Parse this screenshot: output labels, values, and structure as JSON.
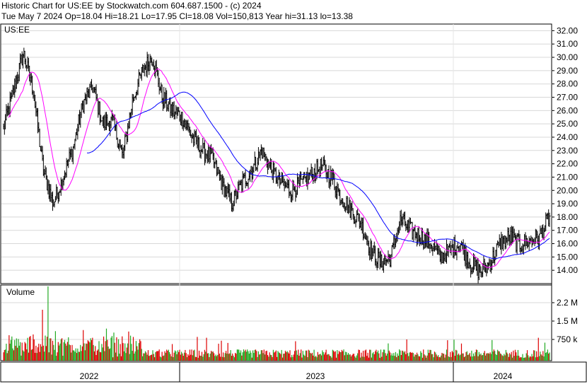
{
  "header": {
    "line1": "Historic Chart for US:EE by Stockwatch.com 604.687.1500 - (c) 2024",
    "line2": "Tue May  7 2024   Op=18.04   Hi=18.21   Lo=17.95   Cl=18.08   Vol=150,813   Year hi=31.13   lo=13.38"
  },
  "chart_data": [
    {
      "type": "line",
      "title": "US:EE",
      "series": [
        {
          "values": [
            24.6,
            27.5,
            30.3,
            27.5,
            21.5,
            19.0,
            21.0,
            23.2,
            26.5,
            27.8,
            25.0,
            25.2,
            22.5,
            26.8,
            29.0,
            30.0,
            27.0,
            26.0,
            25.5,
            24.0,
            23.0,
            22.5,
            20.5,
            19.0,
            20.5,
            21.5,
            23.0,
            21.5,
            20.5,
            20.0,
            20.5,
            21.2,
            21.8,
            21.0,
            19.5,
            18.5,
            17.5,
            15.5,
            14.5,
            15.0,
            17.8,
            17.0,
            16.5,
            16.0,
            15.0,
            15.5,
            16.0,
            14.5,
            13.9,
            14.5,
            16.0,
            16.5,
            15.9,
            16.2,
            16.5,
            18.08
          ]
        }
      ],
      "moving_averages": "pink = short-term moving average, blue = long-term moving average",
      "ylim": [
        13,
        32.5
      ],
      "y_ticks": [
        "32.00",
        "31.00",
        "30.00",
        "29.00",
        "28.00",
        "27.00",
        "26.00",
        "25.00",
        "24.00",
        "23.00",
        "22.00",
        "21.00",
        "20.00",
        "19.00",
        "18.00",
        "17.00",
        "16.00",
        "15.00",
        "14.00"
      ],
      "x_labels": [
        "2022",
        "2023",
        "2024"
      ],
      "colors": {
        "price": "#000000",
        "ma_short": "#ff00ff",
        "ma_long": "#0000ff"
      }
    },
    {
      "type": "bar",
      "title": "Volume",
      "y_ticks": [
        "2.2 M",
        "1.5 M",
        "750 k"
      ],
      "colors": {
        "up": "#22aa22",
        "down": "#dd0000"
      }
    }
  ]
}
